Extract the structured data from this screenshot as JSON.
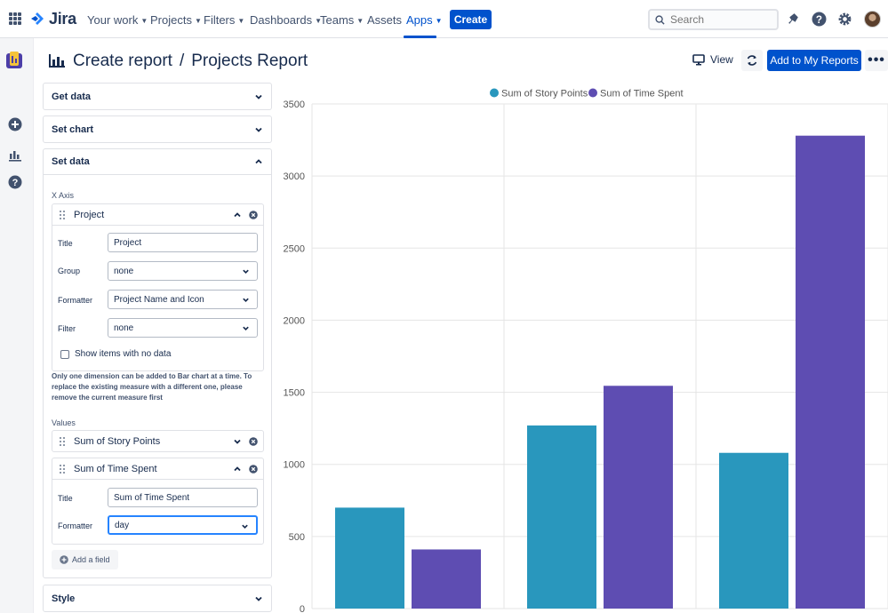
{
  "topnav": {
    "product": "Jira",
    "items": [
      {
        "label": "Your work",
        "dropdown": true
      },
      {
        "label": "Projects",
        "dropdown": true
      },
      {
        "label": "Filters",
        "dropdown": true
      },
      {
        "label": "Dashboards",
        "dropdown": true
      },
      {
        "label": "Teams",
        "dropdown": true
      },
      {
        "label": "Assets",
        "dropdown": false
      },
      {
        "label": "Apps",
        "dropdown": true,
        "active": true
      }
    ],
    "create_label": "Create",
    "search_placeholder": "Search",
    "icons": [
      "notifications-icon",
      "help-icon",
      "settings-icon",
      "avatar"
    ]
  },
  "left_rail": {
    "icons": [
      "app-logo-icon",
      "add-icon",
      "reports-icon",
      "help-icon"
    ]
  },
  "header": {
    "breadcrumb": "Create report",
    "separator": "/",
    "title": "Projects Report",
    "view_label": "View",
    "add_label": "Add to My Reports",
    "more_label": "•••"
  },
  "panel": {
    "sections": {
      "get_data": "Get data",
      "set_chart": "Set chart",
      "set_data": "Set data",
      "style": "Style"
    },
    "x_axis_label": "X Axis",
    "x_axis_field": {
      "name": "Project",
      "rows": [
        {
          "label": "Title",
          "value": "Project",
          "type": "text"
        },
        {
          "label": "Group",
          "value": "none",
          "type": "select"
        },
        {
          "label": "Formatter",
          "value": "Project Name and Icon",
          "type": "select"
        },
        {
          "label": "Filter",
          "value": "none",
          "type": "select"
        }
      ],
      "checkbox_label": "Show items with no data"
    },
    "note": "Only one dimension can be added to Bar chart at a time. To replace the existing measure with a different one, please remove the current measure first",
    "values_label": "Values",
    "value_fields": [
      {
        "name": "Sum of Story Points"
      },
      {
        "name": "Sum of Time Spent",
        "rows": [
          {
            "label": "Title",
            "value": "Sum of Time Spent",
            "type": "text"
          },
          {
            "label": "Formatter",
            "value": "day",
            "type": "select"
          }
        ]
      }
    ],
    "add_field_label": "Add a field"
  },
  "chart_data": {
    "type": "bar",
    "categories": [
      "",
      "",
      ""
    ],
    "series": [
      {
        "name": "Sum of Story Points",
        "color": "#2997bd",
        "values": [
          700,
          1270,
          1080
        ]
      },
      {
        "name": "Sum of Time Spent",
        "color": "#5e4db2",
        "values": [
          410,
          1545,
          3280
        ]
      }
    ],
    "ylim": [
      0,
      3500
    ],
    "yticks": [
      0,
      500,
      1000,
      1500,
      2000,
      2500,
      3000,
      3500
    ],
    "legend": "top-center",
    "grid": true
  }
}
